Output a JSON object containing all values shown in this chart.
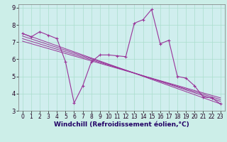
{
  "xlabel": "Windchill (Refroidissement éolien,°C)",
  "xlim": [
    -0.5,
    23.5
  ],
  "ylim": [
    3,
    9.2
  ],
  "yticks": [
    3,
    4,
    5,
    6,
    7,
    8,
    9
  ],
  "xticks": [
    0,
    1,
    2,
    3,
    4,
    5,
    6,
    7,
    8,
    9,
    10,
    11,
    12,
    13,
    14,
    15,
    16,
    17,
    18,
    19,
    20,
    21,
    22,
    23
  ],
  "background_color": "#cceee8",
  "plot_bg": "#d0eeee",
  "line_color": "#993399",
  "grid_color": "#aaddcc",
  "zigzag": {
    "x": [
      0,
      1,
      2,
      3,
      4,
      5,
      6,
      7,
      8,
      9,
      10,
      11,
      12,
      13,
      14,
      15,
      16,
      17,
      18,
      19,
      20,
      21,
      22,
      23
    ],
    "y": [
      7.5,
      7.3,
      7.6,
      7.4,
      7.2,
      5.85,
      3.45,
      4.45,
      5.85,
      6.25,
      6.25,
      6.2,
      6.15,
      8.1,
      8.3,
      8.9,
      6.9,
      7.1,
      5.0,
      4.9,
      4.45,
      3.8,
      3.75,
      3.4
    ]
  },
  "diag_lines": [
    {
      "x0": 0.0,
      "y0": 7.5,
      "x1": 23,
      "y1": 3.4
    },
    {
      "x0": 0.0,
      "y0": 7.35,
      "x1": 23,
      "y1": 3.55
    },
    {
      "x0": 0.0,
      "y0": 7.2,
      "x1": 23,
      "y1": 3.65
    },
    {
      "x0": 0.0,
      "y0": 7.05,
      "x1": 23,
      "y1": 3.75
    }
  ],
  "label_fontsize": 5.5,
  "xlabel_fontsize": 6.5,
  "spine_color": "#777777"
}
